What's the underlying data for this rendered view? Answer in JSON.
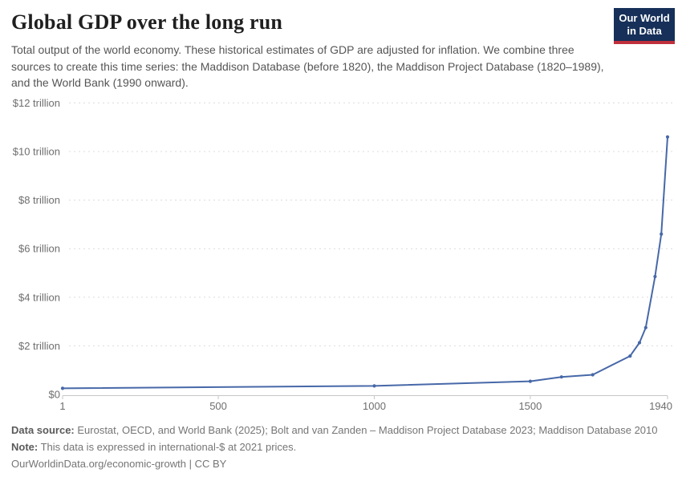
{
  "header": {
    "title": "Global GDP over the long run",
    "subtitle": "Total output of the world economy. These historical estimates of GDP are adjusted for inflation. We combine three sources to create this time series: the Maddison Database (before 1820), the Maddison Project Database (1820–1989), and the World Bank (1990 onward).",
    "logo": {
      "text_line1": "Our World",
      "text_line2": "in Data",
      "bg_color": "#163059",
      "stripe_color": "#c0303c",
      "text_color": "#ffffff"
    }
  },
  "chart_data": {
    "type": "line",
    "title": "Global GDP over the long run",
    "xlabel": "",
    "ylabel": "",
    "xlim": [
      1,
      1940
    ],
    "ylim": [
      0,
      12
    ],
    "grid": "horizontal-dashed",
    "legend": "none",
    "x": [
      1,
      1000,
      1500,
      1600,
      1700,
      1820,
      1850,
      1870,
      1900,
      1920,
      1940
    ],
    "series": [
      {
        "name": "World",
        "color": "#4768a8",
        "values_trillion_intl_dollars": [
          0.25,
          0.35,
          0.54,
          0.72,
          0.81,
          1.58,
          2.13,
          2.75,
          4.85,
          6.6,
          10.6
        ]
      }
    ],
    "x_ticks": [
      {
        "year": 1,
        "label": "1"
      },
      {
        "year": 500,
        "label": "500"
      },
      {
        "year": 1000,
        "label": "1000"
      },
      {
        "year": 1500,
        "label": "1500"
      },
      {
        "year": 1940,
        "label": "1940"
      }
    ],
    "y_ticks": [
      {
        "value": 0,
        "label": "$0"
      },
      {
        "value": 2,
        "label": "$2 trillion"
      },
      {
        "value": 4,
        "label": "$4 trillion"
      },
      {
        "value": 6,
        "label": "$6 trillion"
      },
      {
        "value": 8,
        "label": "$8 trillion"
      },
      {
        "value": 10,
        "label": "$10 trillion"
      },
      {
        "value": 12,
        "label": "$12 trillion"
      }
    ],
    "colors": {
      "line": "#4768a8",
      "grid": "#dcdcdc",
      "axis": "#c6c6c6",
      "tick_label": "#6e6e6e"
    }
  },
  "footer": {
    "source_label": "Data source:",
    "source_text": " Eurostat, OECD, and World Bank (2025); Bolt and van Zanden – Maddison Project Database 2023; Maddison Database 2010",
    "note_label": "Note:",
    "note_text": " This data is expressed in international-$ at 2021 prices.",
    "link_text": "OurWorldinData.org/economic-growth",
    "separator": " | ",
    "license_text": "CC BY"
  }
}
